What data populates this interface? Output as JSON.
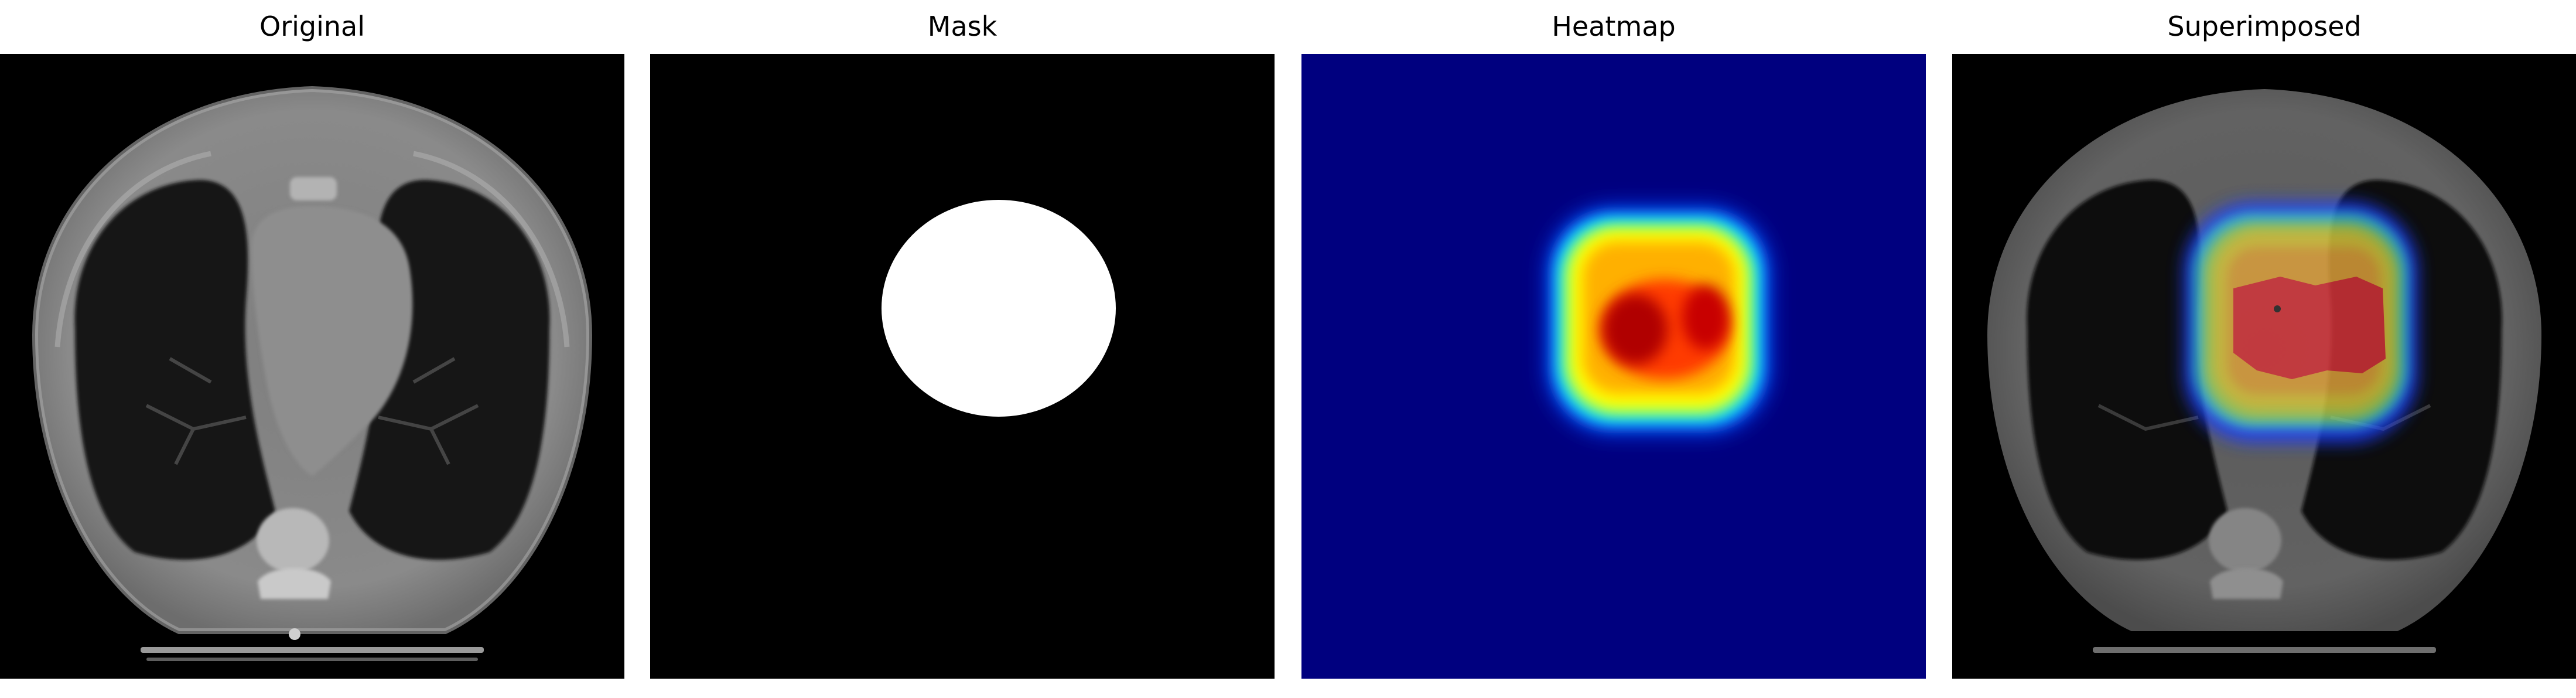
{
  "figure": {
    "panels": [
      {
        "title": "Original"
      },
      {
        "title": "Mask"
      },
      {
        "title": "Heatmap"
      },
      {
        "title": "Superimposed"
      }
    ]
  },
  "colors": {
    "background": "#ffffff",
    "image_background": "#000000",
    "heatmap_base": "#00007f",
    "mask_fill": "#ffffff",
    "ct_tissue": "#8c8c8c",
    "lung_dark": "#1a1a1a"
  },
  "icons": []
}
